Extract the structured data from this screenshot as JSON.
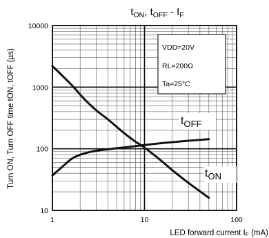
{
  "chart_data": {
    "type": "line",
    "title": {
      "t1": "t",
      "s1": "ON",
      "sep": ", t",
      "s2": "OFF",
      "rest": " - I",
      "s3": "F"
    },
    "xlabel": {
      "main": "LED forward current I",
      "sub": "F",
      "unit": " (mA)"
    },
    "ylabel": "Turn ON, Turn OFF time tON, tOFF (µs)",
    "xscale": "log",
    "yscale": "log",
    "xlim": [
      1,
      100
    ],
    "ylim": [
      10,
      10000
    ],
    "x_ticks": [
      "1",
      "10",
      "100"
    ],
    "y_ticks": [
      "10",
      "100",
      "1000",
      "10000"
    ],
    "grid": true,
    "conditions": [
      "VDD=20V",
      "RL=200Ω",
      "Ta=25°C"
    ],
    "series": [
      {
        "name": "tOFF",
        "label": {
          "main": "t",
          "sub": "OFF"
        },
        "x": [
          1,
          1.3,
          1.7,
          2.2,
          3,
          4,
          6,
          8,
          10,
          15,
          20,
          30,
          50
        ],
        "y": [
          2200,
          1500,
          1000,
          650,
          420,
          300,
          180,
          130,
          105,
          65,
          45,
          28,
          16
        ]
      },
      {
        "name": "tON",
        "label": {
          "main": "t",
          "sub": "ON"
        },
        "x": [
          1,
          1.3,
          1.6,
          2,
          2.5,
          3,
          4,
          5,
          7,
          10,
          15,
          20,
          30,
          50
        ],
        "y": [
          37,
          52,
          68,
          80,
          88,
          93,
          98,
          102,
          108,
          115,
          123,
          128,
          135,
          143
        ]
      }
    ]
  }
}
